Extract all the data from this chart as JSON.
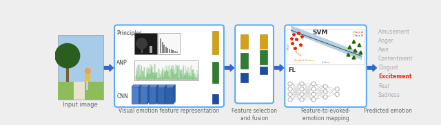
{
  "bg_color": "#eeeeee",
  "box_edge_color": "#55aaff",
  "arrow_color": "#3366cc",
  "label_color": "#666666",
  "emotion_labels": [
    "Amusement",
    "Anger",
    "Awe",
    "Contentment",
    "Disgust",
    "Excitement",
    "Fear",
    "Sadness"
  ],
  "highlighted_emotion": "Excitement",
  "highlight_color": "#ff2200",
  "normal_emotion_color": "#aaaaaa",
  "yellow_bar": "#d4a017",
  "green_bar": "#2e7d32",
  "blue_bar": "#1a4fa0",
  "cnn_blue": "#3a6db5",
  "fig_w": 6.4,
  "fig_h": 1.82,
  "dpi": 100
}
